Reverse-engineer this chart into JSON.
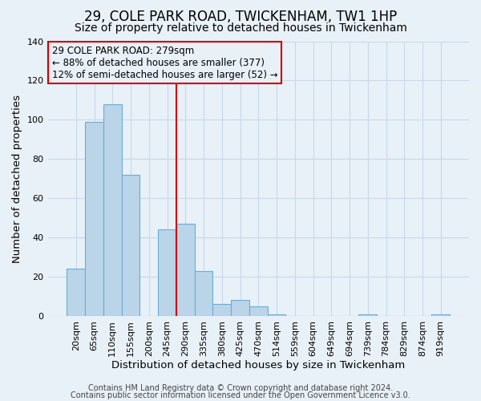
{
  "title": "29, COLE PARK ROAD, TWICKENHAM, TW1 1HP",
  "subtitle": "Size of property relative to detached houses in Twickenham",
  "xlabel": "Distribution of detached houses by size in Twickenham",
  "ylabel": "Number of detached properties",
  "bar_labels": [
    "20sqm",
    "65sqm",
    "110sqm",
    "155sqm",
    "200sqm",
    "245sqm",
    "290sqm",
    "335sqm",
    "380sqm",
    "425sqm",
    "470sqm",
    "514sqm",
    "559sqm",
    "604sqm",
    "649sqm",
    "694sqm",
    "739sqm",
    "784sqm",
    "829sqm",
    "874sqm",
    "919sqm"
  ],
  "bar_values": [
    24,
    99,
    108,
    72,
    0,
    44,
    47,
    23,
    6,
    8,
    5,
    1,
    0,
    0,
    0,
    0,
    1,
    0,
    0,
    0,
    1
  ],
  "bar_color": "#bad4e8",
  "bar_edge_color": "#6aaed6",
  "vline_x": 5.5,
  "vline_color": "#cc0000",
  "annotation_title": "29 COLE PARK ROAD: 279sqm",
  "annotation_line1": "← 88% of detached houses are smaller (377)",
  "annotation_line2": "12% of semi-detached houses are larger (52) →",
  "annotation_box_color": "#cc0000",
  "ylim": [
    0,
    140
  ],
  "yticks": [
    0,
    20,
    40,
    60,
    80,
    100,
    120,
    140
  ],
  "footer1": "Contains HM Land Registry data © Crown copyright and database right 2024.",
  "footer2": "Contains public sector information licensed under the Open Government Licence v3.0.",
  "background_color": "#e8f0f8",
  "grid_color": "#c8d8e8",
  "title_fontsize": 12,
  "subtitle_fontsize": 10,
  "axis_label_fontsize": 9.5,
  "tick_fontsize": 8,
  "footer_fontsize": 7,
  "annotation_fontsize": 8.5
}
